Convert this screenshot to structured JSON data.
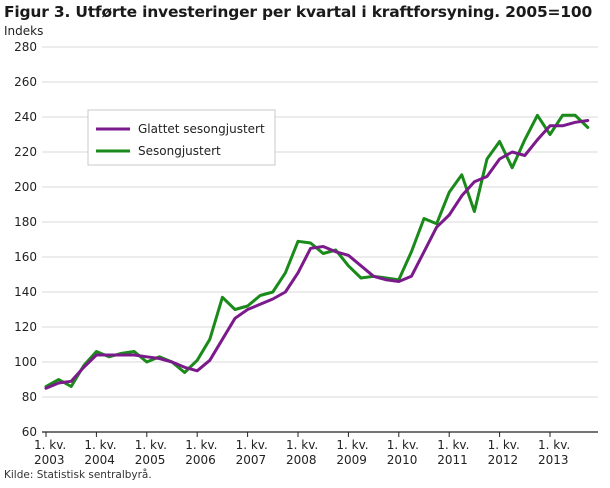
{
  "chart_data": {
    "type": "line",
    "title": "Figur 3. Utførte investeringer per kvartal i kraftforsyning. 2005=100",
    "ylabel": "Indeks",
    "source": "Kilde: Statistisk sentralbyrå.",
    "ylim": [
      60,
      280
    ],
    "yticks": [
      60,
      80,
      100,
      120,
      140,
      160,
      180,
      200,
      220,
      240,
      260,
      280
    ],
    "grid": true,
    "legend_position": "upper-left",
    "x_tick_labels": [
      {
        "line1": "1. kv.",
        "line2": "2003",
        "index": 0
      },
      {
        "line1": "1. kv.",
        "line2": "2004",
        "index": 4
      },
      {
        "line1": "1. kv.",
        "line2": "2005",
        "index": 8
      },
      {
        "line1": "1. kv.",
        "line2": "2006",
        "index": 12
      },
      {
        "line1": "1. kv.",
        "line2": "2007",
        "index": 16
      },
      {
        "line1": "1. kv.",
        "line2": "2008",
        "index": 20
      },
      {
        "line1": "1. kv.",
        "line2": "2009",
        "index": 24
      },
      {
        "line1": "1. kv.",
        "line2": "2010",
        "index": 28
      },
      {
        "line1": "1. kv.",
        "line2": "2011",
        "index": 32
      },
      {
        "line1": "1. kv.",
        "line2": "2012",
        "index": 36
      },
      {
        "line1": "1. kv.",
        "line2": "2013",
        "index": 40
      }
    ],
    "x": [
      "2003K1",
      "2003K2",
      "2003K3",
      "2003K4",
      "2004K1",
      "2004K2",
      "2004K3",
      "2004K4",
      "2005K1",
      "2005K2",
      "2005K3",
      "2005K4",
      "2006K1",
      "2006K2",
      "2006K3",
      "2006K4",
      "2007K1",
      "2007K2",
      "2007K3",
      "2007K4",
      "2008K1",
      "2008K2",
      "2008K3",
      "2008K4",
      "2009K1",
      "2009K2",
      "2009K3",
      "2009K4",
      "2010K1",
      "2010K2",
      "2010K3",
      "2010K4",
      "2011K1",
      "2011K2",
      "2011K3",
      "2011K4",
      "2012K1",
      "2012K2",
      "2012K3",
      "2012K4",
      "2013K1",
      "2013K2",
      "2013K3",
      "2013K4"
    ],
    "series": [
      {
        "name": "Glattet sesongjustert",
        "color": "#7b1a8a",
        "values": [
          85,
          88,
          89,
          97,
          104,
          104,
          104,
          104,
          103,
          102,
          100,
          97,
          95,
          101,
          113,
          125,
          130,
          133,
          136,
          140,
          151,
          165,
          166,
          163,
          161,
          155,
          149,
          147,
          146,
          149,
          163,
          177,
          184,
          195,
          203,
          206,
          216,
          220,
          218,
          227,
          235,
          235,
          237,
          238
        ]
      },
      {
        "name": "Sesongjustert",
        "color": "#1a8a1a",
        "values": [
          86,
          90,
          86,
          98,
          106,
          103,
          105,
          106,
          100,
          103,
          100,
          94,
          101,
          113,
          137,
          130,
          132,
          138,
          140,
          151,
          169,
          168,
          162,
          164,
          155,
          148,
          149,
          148,
          147,
          163,
          182,
          179,
          197,
          207,
          186,
          216,
          226,
          211,
          227,
          241,
          230,
          241,
          241,
          234
        ]
      }
    ]
  }
}
